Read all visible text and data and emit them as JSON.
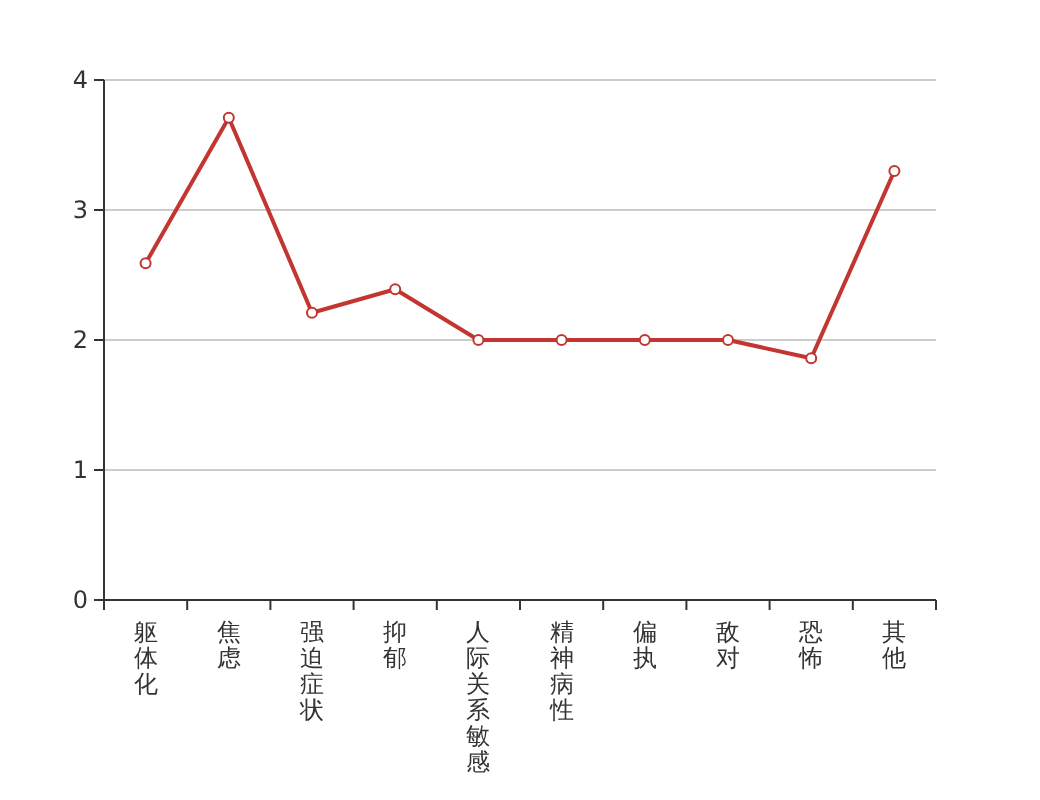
{
  "chart_data": {
    "type": "line",
    "categories": [
      "躯体化",
      "焦虑",
      "强迫症状",
      "抑郁",
      "人际关系敏感",
      "精神病性",
      "偏执",
      "敌对",
      "恐怖",
      "其他"
    ],
    "series": [
      {
        "color": "#c23531",
        "values": [
          2.59,
          3.71,
          2.21,
          2.39,
          2.0,
          2.0,
          2.0,
          2.0,
          1.86,
          3.3
        ]
      }
    ],
    "ylim": [
      0,
      4
    ],
    "yticks": [
      0,
      1,
      2,
      3,
      4
    ],
    "grid": "y",
    "marker": "circle",
    "line_style": "solid"
  }
}
